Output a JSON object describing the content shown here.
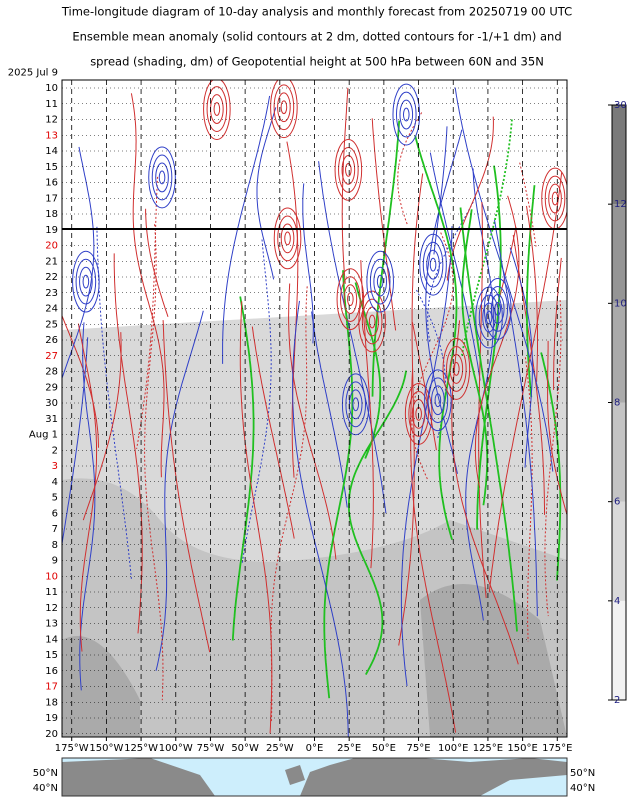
{
  "chart_data": {
    "type": "contour",
    "title_lines": [
      "Time-longitude diagram of 10-day analysis and monthly forecast from 20250719 00 UTC",
      "Ensemble mean anomaly (solid contours at 2 dm, dotted contours for -1/+1 dm) and",
      "spread (shading, dm) of Geopotential height at 500 hPa between 60N and 35N"
    ],
    "categories": [
      "2025  Jul  9",
      "10",
      "11",
      "12",
      "13",
      "14",
      "15",
      "16",
      "17",
      "18",
      "19",
      "20",
      "21",
      "22",
      "23",
      "24",
      "25",
      "26",
      "27",
      "28",
      "29",
      "30",
      "31",
      "Aug  1",
      "2",
      "3",
      "4",
      "5",
      "6",
      "7",
      "8",
      "9",
      "10",
      "11",
      "12",
      "13",
      "14",
      "15",
      "16",
      "17",
      "18",
      "19",
      "20"
    ],
    "category_colors": [
      "#000",
      "#000",
      "#000",
      "#000",
      "#e00000",
      "#000",
      "#000",
      "#000",
      "#000",
      "#000",
      "#000",
      "#e00000",
      "#000",
      "#000",
      "#000",
      "#000",
      "#000",
      "#000",
      "#e00000",
      "#000",
      "#000",
      "#000",
      "#000",
      "#000",
      "#000",
      "#e00000",
      "#000",
      "#000",
      "#000",
      "#000",
      "#000",
      "#000",
      "#e00000",
      "#000",
      "#000",
      "#000",
      "#000",
      "#000",
      "#000",
      "#e00000",
      "#000",
      "#000",
      "#000"
    ],
    "xlim": [
      -182,
      182
    ],
    "xticks": [
      {
        "value": -175,
        "label": "175°W"
      },
      {
        "value": -150,
        "label": "150°W"
      },
      {
        "value": -125,
        "label": "125°W"
      },
      {
        "value": -100,
        "label": "100°W"
      },
      {
        "value": -75,
        "label": "75°W"
      },
      {
        "value": -50,
        "label": "50°W"
      },
      {
        "value": -25,
        "label": "25°W"
      },
      {
        "value": 0,
        "label": "0°E"
      },
      {
        "value": 25,
        "label": "25°E"
      },
      {
        "value": 50,
        "label": "50°E"
      },
      {
        "value": 75,
        "label": "75°E"
      },
      {
        "value": 100,
        "label": "100°E"
      },
      {
        "value": 125,
        "label": "125°E"
      },
      {
        "value": 150,
        "label": "150°E"
      },
      {
        "value": 175,
        "label": "175°E"
      }
    ],
    "colorbar_ticks": [
      2,
      4,
      6,
      8,
      10,
      12,
      30
    ],
    "colorbar_colors": [
      "#f2f2f2",
      "#d9d9d9",
      "#c4c4c4",
      "#aaaaaa",
      "#959595",
      "#7a7a7a"
    ],
    "map_labels": [
      "50°N",
      "40°N"
    ]
  }
}
